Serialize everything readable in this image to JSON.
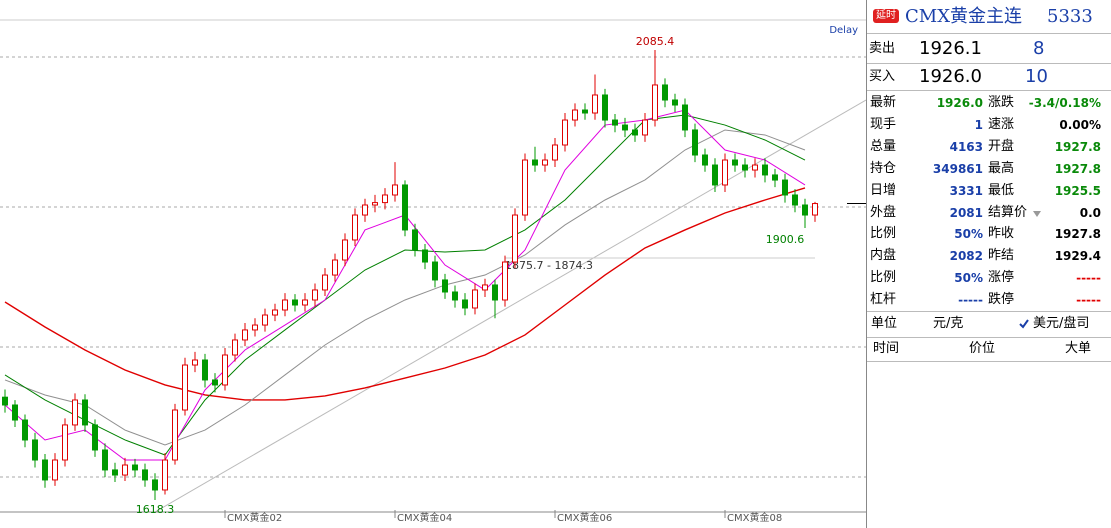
{
  "chart_data": {
    "type": "candlestick",
    "delay": "Delay",
    "ylim": [
      1607.9,
      2137.3
    ],
    "up_color": "#e00000",
    "down_color": "#009900",
    "candles": [
      [
        1725.0,
        1733,
        1709,
        1716.9
      ],
      [
        1716.9,
        1722,
        1694,
        1701.3
      ],
      [
        1701.3,
        1707,
        1673,
        1680.6
      ],
      [
        1680.6,
        1688,
        1652,
        1659.8
      ],
      [
        1659.8,
        1666,
        1631,
        1639.1
      ],
      [
        1639.1,
        1667,
        1633,
        1659.8
      ],
      [
        1659.8,
        1703,
        1653,
        1696.2
      ],
      [
        1696.2,
        1729,
        1690,
        1722.1
      ],
      [
        1722.1,
        1728,
        1689,
        1696.2
      ],
      [
        1696.2,
        1702,
        1663,
        1670.2
      ],
      [
        1670.2,
        1677,
        1642,
        1649.5
      ],
      [
        1649.5,
        1657,
        1637,
        1644.2
      ],
      [
        1644.2,
        1662,
        1638,
        1654.6
      ],
      [
        1654.6,
        1661,
        1642,
        1649.5
      ],
      [
        1649.5,
        1656,
        1632,
        1639.1
      ],
      [
        1639.1,
        1646,
        1618.3,
        1628.7
      ],
      [
        1628.7,
        1667,
        1624,
        1659.8
      ],
      [
        1659.8,
        1718,
        1655,
        1711.7
      ],
      [
        1711.7,
        1766,
        1706,
        1758.4
      ],
      [
        1758.4,
        1772,
        1751,
        1763.6
      ],
      [
        1763.6,
        1770,
        1735,
        1742.9
      ],
      [
        1742.9,
        1750,
        1730,
        1737.7
      ],
      [
        1737.7,
        1776,
        1732,
        1768.8
      ],
      [
        1768.8,
        1791,
        1762,
        1784.4
      ],
      [
        1784.4,
        1802,
        1778,
        1794.8
      ],
      [
        1794.8,
        1807,
        1788,
        1799.9
      ],
      [
        1799.9,
        1817,
        1793,
        1810.3
      ],
      [
        1810.3,
        1822,
        1804,
        1815.5
      ],
      [
        1815.5,
        1833,
        1809,
        1825.9
      ],
      [
        1825.9,
        1832,
        1814,
        1820.7
      ],
      [
        1820.7,
        1833,
        1814,
        1825.9
      ],
      [
        1825.9,
        1843,
        1819,
        1836.3
      ],
      [
        1836.3,
        1859,
        1830,
        1851.8
      ],
      [
        1851.8,
        1874,
        1845,
        1867.4
      ],
      [
        1867.4,
        1895,
        1861,
        1888.2
      ],
      [
        1888.2,
        1921,
        1882,
        1914.1
      ],
      [
        1914.1,
        1931,
        1907,
        1924.5
      ],
      [
        1924.5,
        1935,
        1917,
        1927.0
      ],
      [
        1927.0,
        1942,
        1920,
        1934.9
      ],
      [
        1934.9,
        1969,
        1928,
        1945.3
      ],
      [
        1945.3,
        1950,
        1892,
        1898.6
      ],
      [
        1898.6,
        1905,
        1871,
        1877.8
      ],
      [
        1877.8,
        1884,
        1858,
        1865.3
      ],
      [
        1865.3,
        1872,
        1839,
        1846.7
      ],
      [
        1846.7,
        1853,
        1827,
        1834.2
      ],
      [
        1834.2,
        1841,
        1818,
        1825.9
      ],
      [
        1825.9,
        1833,
        1810,
        1817.6
      ],
      [
        1817.6,
        1843,
        1811,
        1836.3
      ],
      [
        1836.3,
        1848,
        1829,
        1841.5
      ],
      [
        1841.5,
        1847,
        1807,
        1825.9
      ],
      [
        1825.9,
        1872,
        1819,
        1865.3
      ],
      [
        1865.3,
        1921,
        1859,
        1914.1
      ],
      [
        1914.1,
        1978,
        1908,
        1971.2
      ],
      [
        1971.2,
        1985,
        1959,
        1966.0
      ],
      [
        1966.0,
        1978,
        1959,
        1971.2
      ],
      [
        1971.2,
        1994,
        1964,
        1986.8
      ],
      [
        1986.8,
        2020,
        1980,
        2012.7
      ],
      [
        2012.7,
        2030,
        2006,
        2023.1
      ],
      [
        2023.1,
        2030,
        2013,
        2020.0
      ],
      [
        2020.0,
        2060,
        2013,
        2038.7
      ],
      [
        2038.7,
        2045,
        2005,
        2012.7
      ],
      [
        2012.7,
        2019,
        2000,
        2007.5
      ],
      [
        2007.5,
        2015,
        1995,
        2002.4
      ],
      [
        2002.4,
        2009,
        1990,
        1997.2
      ],
      [
        1997.2,
        2020,
        1990,
        2012.7
      ],
      [
        2012.7,
        2085.4,
        2006,
        2049.1
      ],
      [
        2049.1,
        2056,
        2026,
        2033.5
      ],
      [
        2033.5,
        2040,
        2021,
        2028.3
      ],
      [
        2028.3,
        2035,
        1995,
        2002.4
      ],
      [
        2002.4,
        2009,
        1969,
        1976.4
      ],
      [
        1976.4,
        1983,
        1959,
        1966.0
      ],
      [
        1966.0,
        1973,
        1938,
        1945.3
      ],
      [
        1945.3,
        1978,
        1938,
        1971.2
      ],
      [
        1971.2,
        1978,
        1959,
        1966.0
      ],
      [
        1966.0,
        1973,
        1953,
        1960.8
      ],
      [
        1960.8,
        1973,
        1953,
        1966.0
      ],
      [
        1966.0,
        1973,
        1948,
        1955.7
      ],
      [
        1955.7,
        1962,
        1943,
        1950.4
      ],
      [
        1950.4,
        1957,
        1927,
        1934.9
      ],
      [
        1934.9,
        1941,
        1917,
        1924.5
      ],
      [
        1924.5,
        1931,
        1900.6,
        1914.1
      ],
      [
        1914.1,
        1927.8,
        1907,
        1926.0
      ]
    ],
    "categories": [
      null,
      null,
      null,
      null,
      null,
      null,
      null,
      null,
      null,
      null,
      null,
      null,
      null,
      null,
      null,
      null,
      null,
      null,
      null,
      null,
      null,
      null,
      "CMX黄金02",
      null,
      null,
      null,
      null,
      null,
      null,
      null,
      null,
      null,
      null,
      null,
      null,
      null,
      null,
      null,
      null,
      "CMX黄金04",
      null,
      null,
      null,
      null,
      null,
      null,
      null,
      null,
      null,
      null,
      null,
      null,
      null,
      null,
      null,
      "CMX黄金06",
      null,
      null,
      null,
      null,
      null,
      null,
      null,
      null,
      null,
      null,
      null,
      null,
      null,
      null,
      null,
      null,
      "CMX黄金08",
      null,
      null,
      null,
      null,
      null,
      null,
      null,
      null,
      null
    ],
    "lines": [
      {
        "color": "#e00000",
        "x": [
          0,
          4,
          8,
          12,
          16,
          20,
          24,
          28,
          32,
          36,
          40,
          44,
          48,
          52,
          56,
          60,
          64,
          68,
          72,
          76,
          80
        ],
        "values": [
          1823.8,
          1797.9,
          1774.0,
          1753.2,
          1737.7,
          1727.3,
          1722.1,
          1722.1,
          1726.3,
          1734.6,
          1744.9,
          1755.3,
          1768.8,
          1789.6,
          1820.7,
          1851.8,
          1879.9,
          1898.6,
          1916.2,
          1929.7,
          1942.2
        ]
      },
      {
        "color": "#909090",
        "x": [
          0,
          4,
          8,
          12,
          16,
          20,
          24,
          28,
          32,
          36,
          40,
          44,
          48,
          52,
          56,
          60,
          64,
          68,
          72,
          76,
          80
        ],
        "values": [
          1742.9,
          1727.3,
          1716.9,
          1690.9,
          1675.4,
          1690.9,
          1716.9,
          1748.1,
          1779.2,
          1805.1,
          1825.9,
          1841.5,
          1851.8,
          1872.6,
          1903.8,
          1929.7,
          1950.5,
          1981.6,
          2002.4,
          1997.2,
          1981.6
        ]
      },
      {
        "color": "#008000",
        "x": [
          0,
          4,
          8,
          12,
          16,
          20,
          24,
          28,
          32,
          36,
          40,
          44,
          48,
          52,
          56,
          60,
          64,
          68,
          72,
          76,
          80
        ],
        "values": [
          1748.1,
          1722.1,
          1701.3,
          1680.6,
          1665.0,
          1722.1,
          1763.6,
          1794.8,
          1825.9,
          1857.0,
          1877.8,
          1875.7,
          1877.8,
          1898.6,
          1929.7,
          1971.2,
          2012.7,
          2017.9,
          2007.5,
          1992.0,
          1971.2
        ]
      },
      {
        "color": "#e000e0",
        "x": [
          0,
          4,
          8,
          12,
          16,
          20,
          24,
          28,
          32,
          36,
          40,
          44,
          48,
          52,
          56,
          60,
          64,
          68,
          72,
          76,
          80
        ],
        "values": [
          1716.9,
          1680.6,
          1690.9,
          1659.8,
          1659.8,
          1732.5,
          1774.0,
          1799.9,
          1825.9,
          1898.6,
          1914.1,
          1862.2,
          1836.3,
          1877.8,
          1960.8,
          2007.5,
          2012.7,
          2023.1,
          1981.6,
          1971.2,
          1945.3
        ]
      }
    ],
    "range_annotation": "1875.7 - 1874.3"
  },
  "panel": {
    "badge": "延时",
    "title": "CMX黄金主连",
    "code": "5333",
    "sell": {
      "label": "卖出",
      "price": "1926.1",
      "volume": "8"
    },
    "buy": {
      "label": "买入",
      "price": "1926.0",
      "volume": "10"
    },
    "rows": [
      [
        {
          "label": "最新",
          "value": "1926.0"
        },
        {
          "label": "涨跌",
          "value": "-3.4/0.18%"
        }
      ],
      [
        {
          "label": "现手",
          "value": "1"
        },
        {
          "label": "速涨",
          "value": "0.00%"
        }
      ],
      [
        {
          "label": "总量",
          "value": "4163"
        },
        {
          "label": "开盘",
          "value": "1927.8"
        }
      ],
      [
        {
          "label": "持仓",
          "value": "349861"
        },
        {
          "label": "最高",
          "value": "1927.8"
        }
      ],
      [
        {
          "label": "日增",
          "value": "3331"
        },
        {
          "label": "最低",
          "value": "1925.5"
        }
      ],
      [
        {
          "label": "外盘",
          "value": "2081"
        },
        {
          "label": "结算价",
          "value": "0.0"
        }
      ],
      [
        {
          "label": "比例",
          "value": "50%"
        },
        {
          "label": "昨收",
          "value": "1927.8"
        }
      ],
      [
        {
          "label": "内盘",
          "value": "2082"
        },
        {
          "label": "昨结",
          "value": "1929.4"
        }
      ],
      [
        {
          "label": "比例",
          "value": "50%"
        },
        {
          "label": "涨停",
          "value": "-----"
        }
      ],
      [
        {
          "label": "杠杆",
          "value": "-----"
        },
        {
          "label": "跌停",
          "value": "-----"
        }
      ]
    ],
    "unit": {
      "label": "单位",
      "option1": "元/克",
      "option2": "美元/盘司"
    },
    "columns": [
      "时间",
      "价位",
      "大单"
    ]
  }
}
